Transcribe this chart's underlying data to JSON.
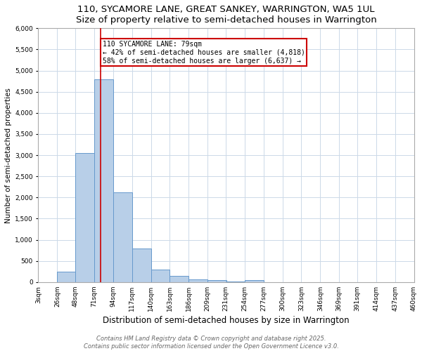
{
  "title1": "110, SYCAMORE LANE, GREAT SANKEY, WARRINGTON, WA5 1UL",
  "title2": "Size of property relative to semi-detached houses in Warrington",
  "xlabel": "Distribution of semi-detached houses by size in Warrington",
  "ylabel": "Number of semi-detached properties",
  "bin_edges": [
    3,
    26,
    48,
    71,
    94,
    117,
    140,
    163,
    186,
    209,
    231,
    254,
    277,
    300,
    323,
    346,
    369,
    391,
    414,
    437,
    460
  ],
  "bar_heights": [
    0,
    250,
    3050,
    4800,
    2130,
    790,
    290,
    140,
    70,
    50,
    20,
    50,
    0,
    0,
    0,
    0,
    0,
    0,
    0,
    0
  ],
  "bar_color": "#b8cfe8",
  "bar_edge_color": "#6699cc",
  "property_size": 79,
  "red_line_color": "#cc0000",
  "annotation_text": "110 SYCAMORE LANE: 79sqm\n← 42% of semi-detached houses are smaller (4,818)\n58% of semi-detached houses are larger (6,637) →",
  "annotation_box_color": "#cc0000",
  "ylim": [
    0,
    6000
  ],
  "yticks": [
    0,
    500,
    1000,
    1500,
    2000,
    2500,
    3000,
    3500,
    4000,
    4500,
    5000,
    5500,
    6000
  ],
  "footer_line1": "Contains HM Land Registry data © Crown copyright and database right 2025.",
  "footer_line2": "Contains public sector information licensed under the Open Government Licence v3.0.",
  "bg_color": "#ffffff",
  "grid_color": "#ccd9e8",
  "title1_fontsize": 9.5,
  "title2_fontsize": 8.5,
  "tick_fontsize": 6.5,
  "ylabel_fontsize": 7.5,
  "xlabel_fontsize": 8.5,
  "footer_fontsize": 6.0,
  "ann_fontsize": 7.0
}
